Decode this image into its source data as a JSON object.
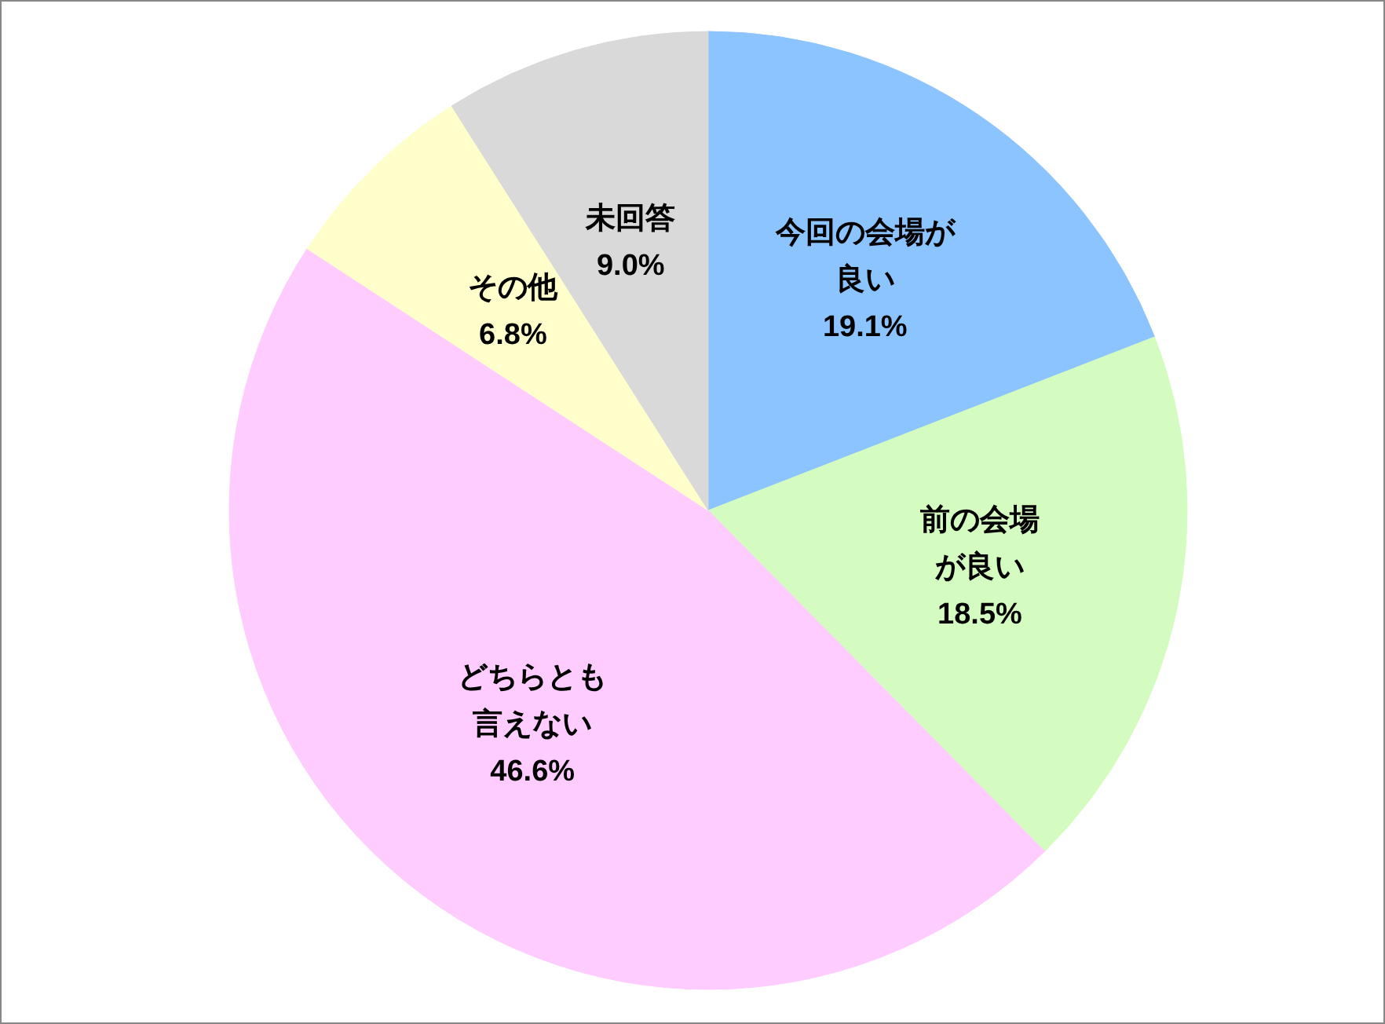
{
  "chart_data": {
    "type": "pie",
    "categories": [
      "今回の会場が良い",
      "前の会場が良い",
      "どちらとも言えない",
      "その他",
      "未回答"
    ],
    "values": [
      19.1,
      18.5,
      46.6,
      6.8,
      9.0
    ],
    "value_labels": [
      "19.1%",
      "18.5%",
      "46.6%",
      "6.8%",
      "9.0%"
    ],
    "colors": [
      "#8cc4ff",
      "#d5fcc0",
      "#ffccff",
      "#ffffcc",
      "#d9d9d9"
    ],
    "legend": false
  }
}
